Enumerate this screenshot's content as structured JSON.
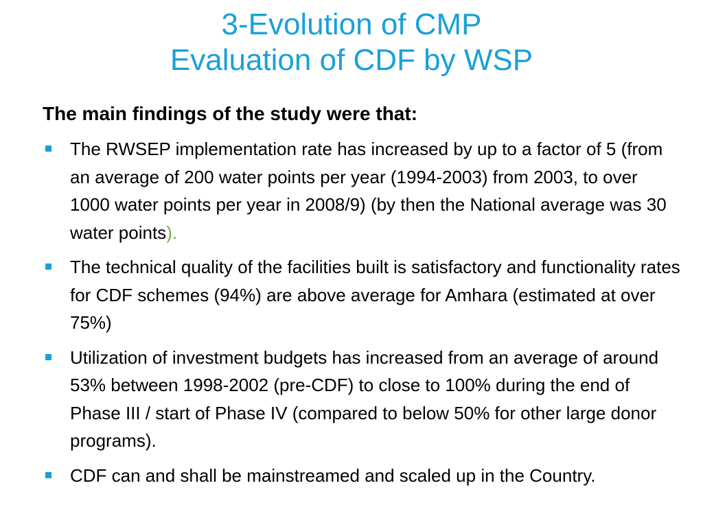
{
  "title": {
    "line1": "3-Evolution of CMP",
    "line2": "Evaluation of CDF by WSP"
  },
  "intro": "The main findings of the study were that:",
  "bullets": [
    {
      "text": "The RWSEP implementation rate has increased by up to a factor of 5 (from an average of 200 water points per year (1994-2003) from 2003, to over 1000 water points per year in 2008/9) (by then the National average was 30 water points",
      "accent": ").",
      "accent_color": "#70ad47"
    },
    {
      "text": "The technical quality of the facilities built is satisfactory and functionality rates for CDF schemes (94%) are above average for Amhara (estimated at over 75%)"
    },
    {
      "text": "Utilization of investment budgets has increased from an average of around 53% between 1998-2002 (pre-CDF) to close to 100% during the end of Phase III / start of Phase IV (compared to below 50% for other large donor programs)."
    },
    {
      "text": "CDF can and shall be mainstreamed and scaled up in the Country."
    }
  ],
  "colors": {
    "title": "#1aa0d8",
    "bullet_marker": "#1aa0d8",
    "body_text": "#000000"
  },
  "icons": {
    "bullet": "square-bullet-icon"
  }
}
